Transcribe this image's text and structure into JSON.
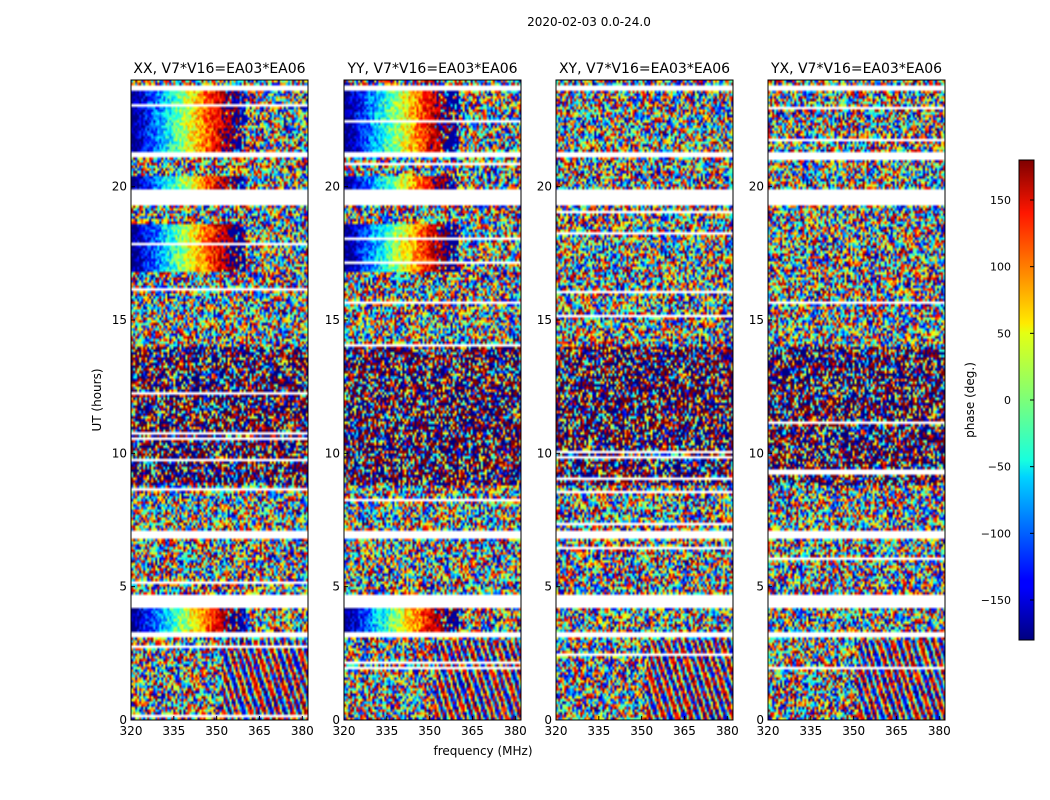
{
  "figure": {
    "suptitle": "2020-02-03 0.0-24.0",
    "ylabel": "UT (hours)",
    "xlabel": "frequency (MHz)"
  },
  "chart_data": {
    "type": "heatmap",
    "colormap": "jet",
    "x_range": [
      320,
      382
    ],
    "y_range": [
      0,
      24
    ],
    "x_ticks": [
      320,
      335,
      350,
      365,
      380
    ],
    "y_ticks": [
      0,
      5,
      10,
      15,
      20
    ],
    "panels": [
      {
        "title": "XX, V7*V16=EA03*EA06",
        "pattern": "fringe"
      },
      {
        "title": "YY, V7*V16=EA03*EA06",
        "pattern": "fringe"
      },
      {
        "title": "XY, V7*V16=EA03*EA06",
        "pattern": "noise"
      },
      {
        "title": "YX, V7*V16=EA03*EA06",
        "pattern": "noise"
      }
    ],
    "data_gaps_hours": [
      [
        3.1,
        3.3
      ],
      [
        4.2,
        4.7
      ],
      [
        6.8,
        7.1
      ],
      [
        19.3,
        19.9
      ],
      [
        21.1,
        21.3
      ],
      [
        23.6,
        23.8
      ]
    ],
    "fringe_hours": [
      [
        3.3,
        4.2
      ],
      [
        16.8,
        18.6
      ],
      [
        19.9,
        20.4
      ],
      [
        21.3,
        23.6
      ]
    ],
    "colorbar": {
      "label": "phase (deg.)",
      "range": [
        -180,
        180
      ],
      "ticks": [
        150,
        100,
        50,
        0,
        -50,
        -100,
        -150
      ],
      "tick_labels": [
        "150",
        "100",
        "50",
        "0",
        "−50",
        "−100",
        "−150"
      ]
    }
  }
}
